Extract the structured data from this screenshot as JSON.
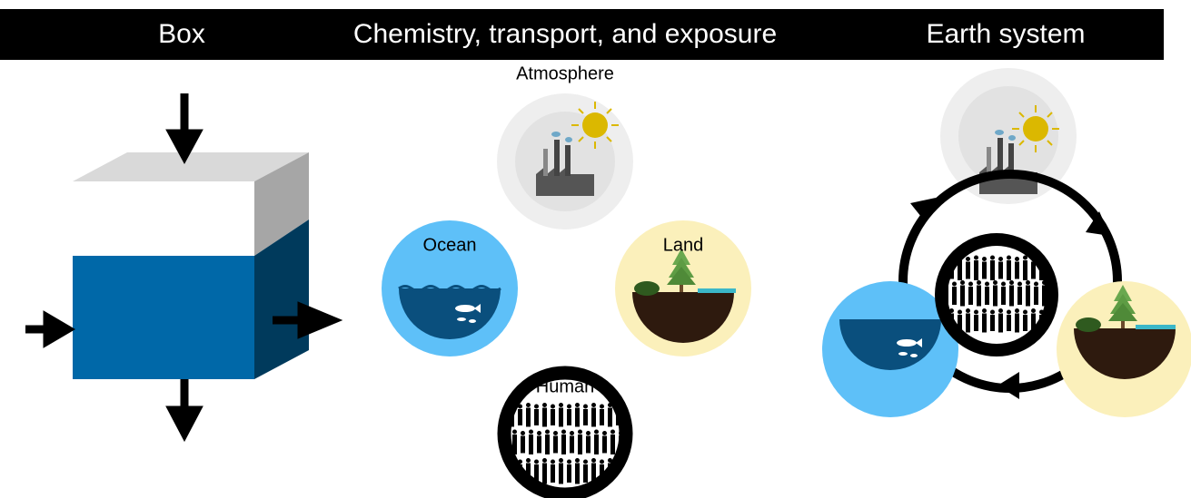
{
  "header": {
    "box": "Box",
    "chemistry": "Chemistry, transport, and exposure",
    "earth": "Earth system"
  },
  "nodes": [
    {
      "label": "Atmosphere"
    },
    {
      "label": "Ocean"
    },
    {
      "label": "Land"
    },
    {
      "label": "Human"
    }
  ]
}
